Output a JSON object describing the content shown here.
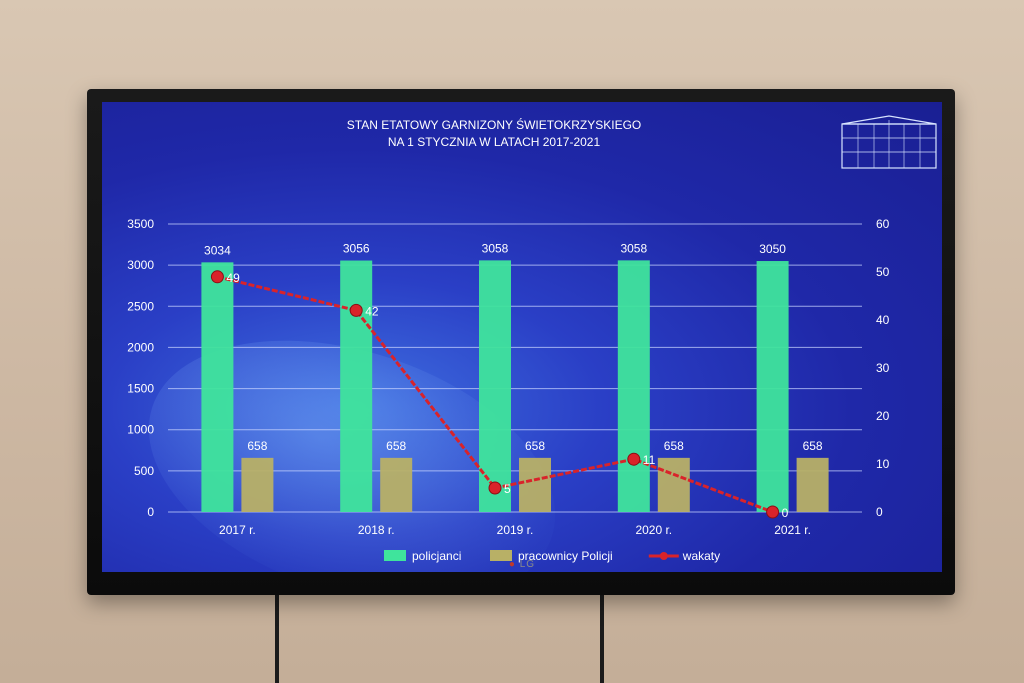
{
  "tv": {
    "brand_logo": "LG"
  },
  "chart_data": {
    "type": "bar",
    "title": "STAN ETATOWY GARNIZONY ŚWIETOKRZYSKIEGO",
    "subtitle": "NA 1  STYCZNIA W LATACH 2017-2021",
    "categories": [
      "2017 r.",
      "2018 r.",
      "2019 r.",
      "2020 r.",
      "2021 r."
    ],
    "series": [
      {
        "name": "policjanci",
        "type": "bar",
        "axis": "left",
        "values": [
          3034,
          3056,
          3058,
          3058,
          3050
        ],
        "color": "#3fe49c"
      },
      {
        "name": "pracownicy Policji",
        "type": "bar",
        "axis": "left",
        "values": [
          658,
          658,
          658,
          658,
          658
        ],
        "color": "#b8b066"
      },
      {
        "name": "wakaty",
        "type": "line",
        "axis": "right",
        "values": [
          49,
          42,
          5,
          11,
          0
        ],
        "color": "#d9232a"
      }
    ],
    "y_left": {
      "min": 0,
      "max": 3500,
      "ticks": [
        "0",
        "500",
        "1000",
        "1500",
        "2000",
        "2500",
        "3000",
        "3500"
      ]
    },
    "y_right": {
      "min": 0,
      "max": 60,
      "ticks": [
        "0",
        "10",
        "20",
        "30",
        "40",
        "50",
        "60"
      ]
    },
    "grid": true,
    "legend_position": "bottom",
    "colors": {
      "text": "#ffffff",
      "grid": "#c8d4ff"
    }
  }
}
